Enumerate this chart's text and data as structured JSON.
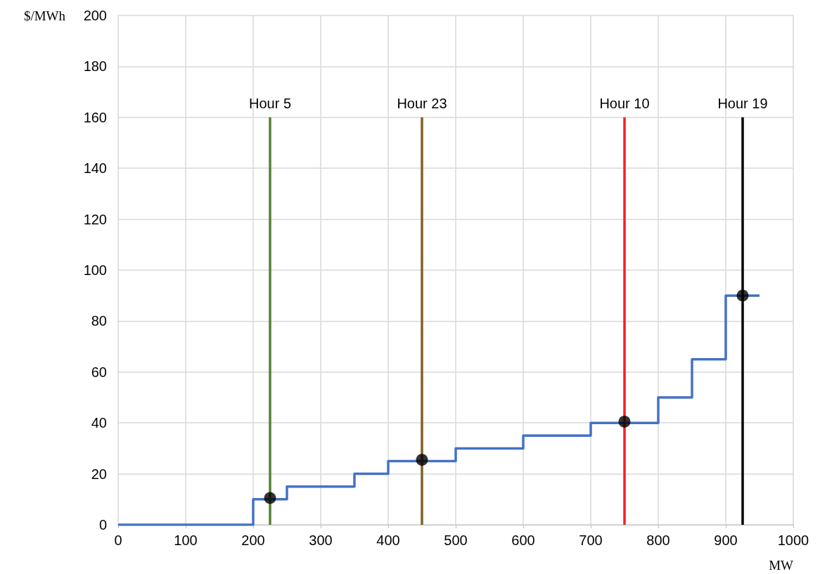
{
  "chart_data": {
    "type": "step",
    "xlabel": "MW",
    "ylabel": "$/MWh",
    "xlim": [
      0,
      1000
    ],
    "xticks": [
      0,
      100,
      200,
      300,
      400,
      500,
      600,
      700,
      800,
      900,
      1000
    ],
    "ylim": [
      0,
      200
    ],
    "yticks": [
      0,
      20,
      40,
      60,
      80,
      100,
      120,
      140,
      160,
      180,
      200
    ],
    "grid": true,
    "marker": "none",
    "line_style": "solid",
    "series": [
      {
        "color": "#4472c4",
        "x": [
          0,
          200,
          250,
          350,
          400,
          500,
          600,
          700,
          800,
          850,
          900,
          950
        ],
        "values": [
          0,
          10,
          15,
          20,
          25,
          30,
          35,
          40,
          50,
          65,
          90,
          90
        ]
      },
      {
        "type": "line",
        "name": "Hour 5",
        "color": "#548235",
        "x": [
          225,
          225
        ],
        "values": [
          0,
          160
        ]
      },
      {
        "type": "line",
        "name": "Hour 23",
        "color": "#7f6025",
        "x": [
          450,
          450
        ],
        "values": [
          0,
          160
        ]
      },
      {
        "type": "line",
        "name": "Hour 10",
        "color": "#f32020",
        "x": [
          750,
          750
        ],
        "values": [
          0,
          160
        ]
      },
      {
        "type": "line",
        "name": "Hour 19",
        "color": "#000000",
        "x": [
          925,
          925
        ],
        "values": [
          0,
          160
        ]
      },
      {
        "type": "scatter",
        "marker": "circle",
        "color": "#000000",
        "x": [
          225,
          450,
          750,
          925
        ],
        "values": [
          10.5,
          25.5,
          40.5,
          90
        ]
      }
    ]
  }
}
